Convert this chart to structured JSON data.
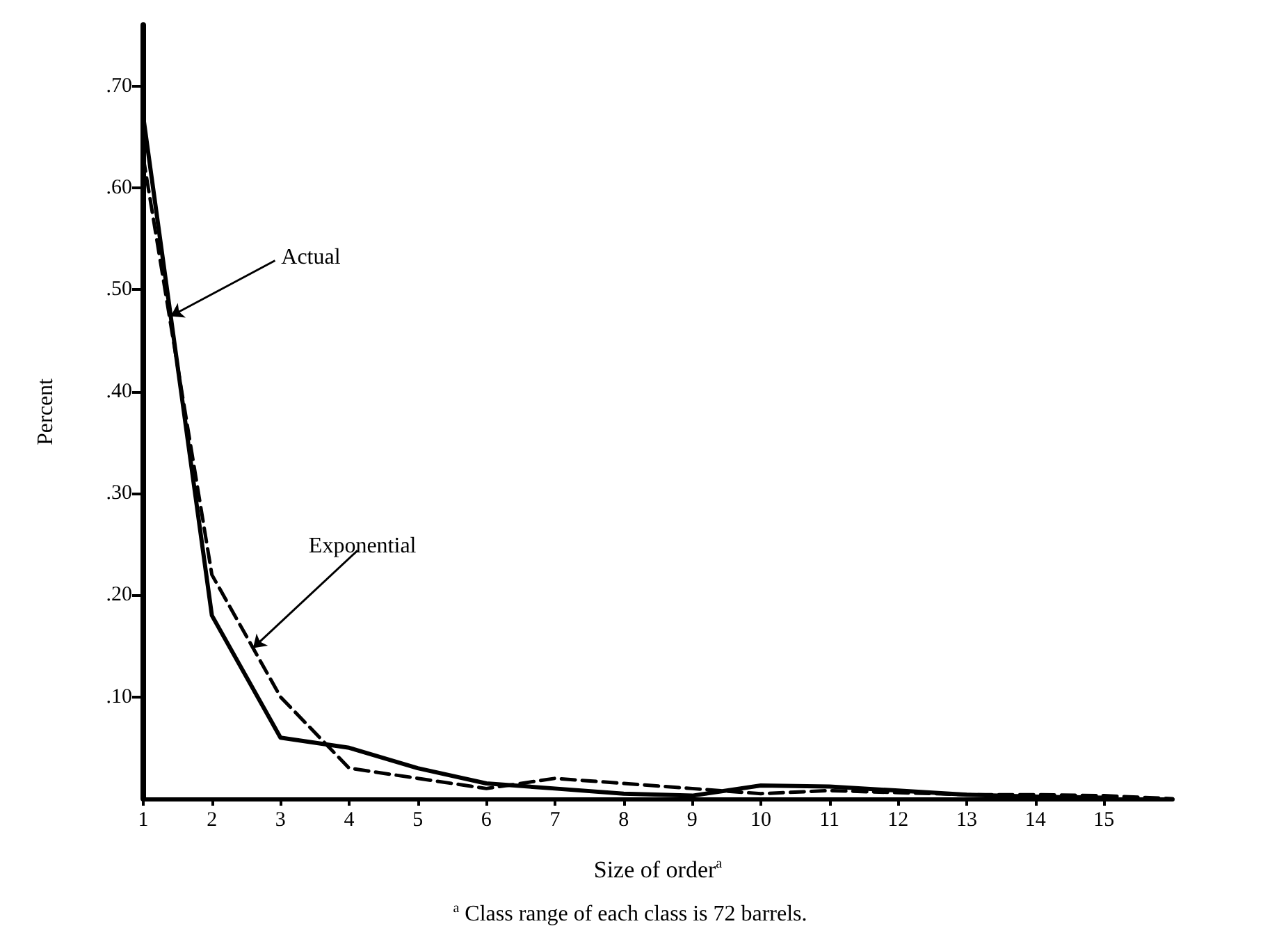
{
  "chart_data": {
    "type": "line",
    "xlabel": "Size of order$^{a}$",
    "ylabel": "Percent",
    "annotations": [
      {
        "text": "Actual",
        "x": 1.4,
        "y": 0.474
      },
      {
        "text": "Exponential",
        "x": 2.6,
        "y": 0.148
      },
      "$^{a}$ Class range of each class is 72 barrels."
    ],
    "x": [
      1,
      2,
      3,
      4,
      5,
      6,
      7,
      8,
      9,
      10,
      11,
      12,
      13,
      14,
      15
    ],
    "series": [
      {
        "color": "#000000",
        "line_style": "solid",
        "values": [
          0.67,
          0.18,
          0.06,
          0.05,
          0.03,
          0.015,
          0.01,
          0.005,
          0.003,
          0.013,
          0.012,
          0.008,
          0.004,
          0.002,
          0.001
        ]
      },
      {
        "color": "#000000",
        "line_style": "dashed",
        "x": [
          1,
          2,
          3,
          4,
          5,
          6,
          7,
          8,
          9,
          10,
          11,
          12,
          13,
          14,
          15,
          16
        ],
        "values": [
          0.63,
          0.22,
          0.1,
          0.03,
          0.02,
          0.01,
          0.02,
          0.015,
          0.01,
          0.005,
          0.008,
          0.006,
          0.004,
          0.004,
          0.003,
          0
        ]
      }
    ],
    "xlim": [
      1,
      16
    ],
    "xticks": [
      1,
      2,
      3,
      4,
      5,
      6,
      7,
      8,
      9,
      10,
      11,
      12,
      13,
      14,
      15
    ],
    "ylim": [
      0,
      0.76
    ],
    "yticks": [
      {
        "value": 0.1,
        "label": ".10"
      },
      {
        "value": 0.2,
        "label": ".20"
      },
      {
        "value": 0.3,
        "label": ".30"
      },
      {
        "value": 0.4,
        "label": ".40"
      },
      {
        "value": 0.5,
        "label": ".50"
      },
      {
        "value": 0.6,
        "label": ".60"
      },
      {
        "value": 0.7,
        "label": ".70"
      }
    ],
    "grid": false,
    "marker": "none"
  }
}
